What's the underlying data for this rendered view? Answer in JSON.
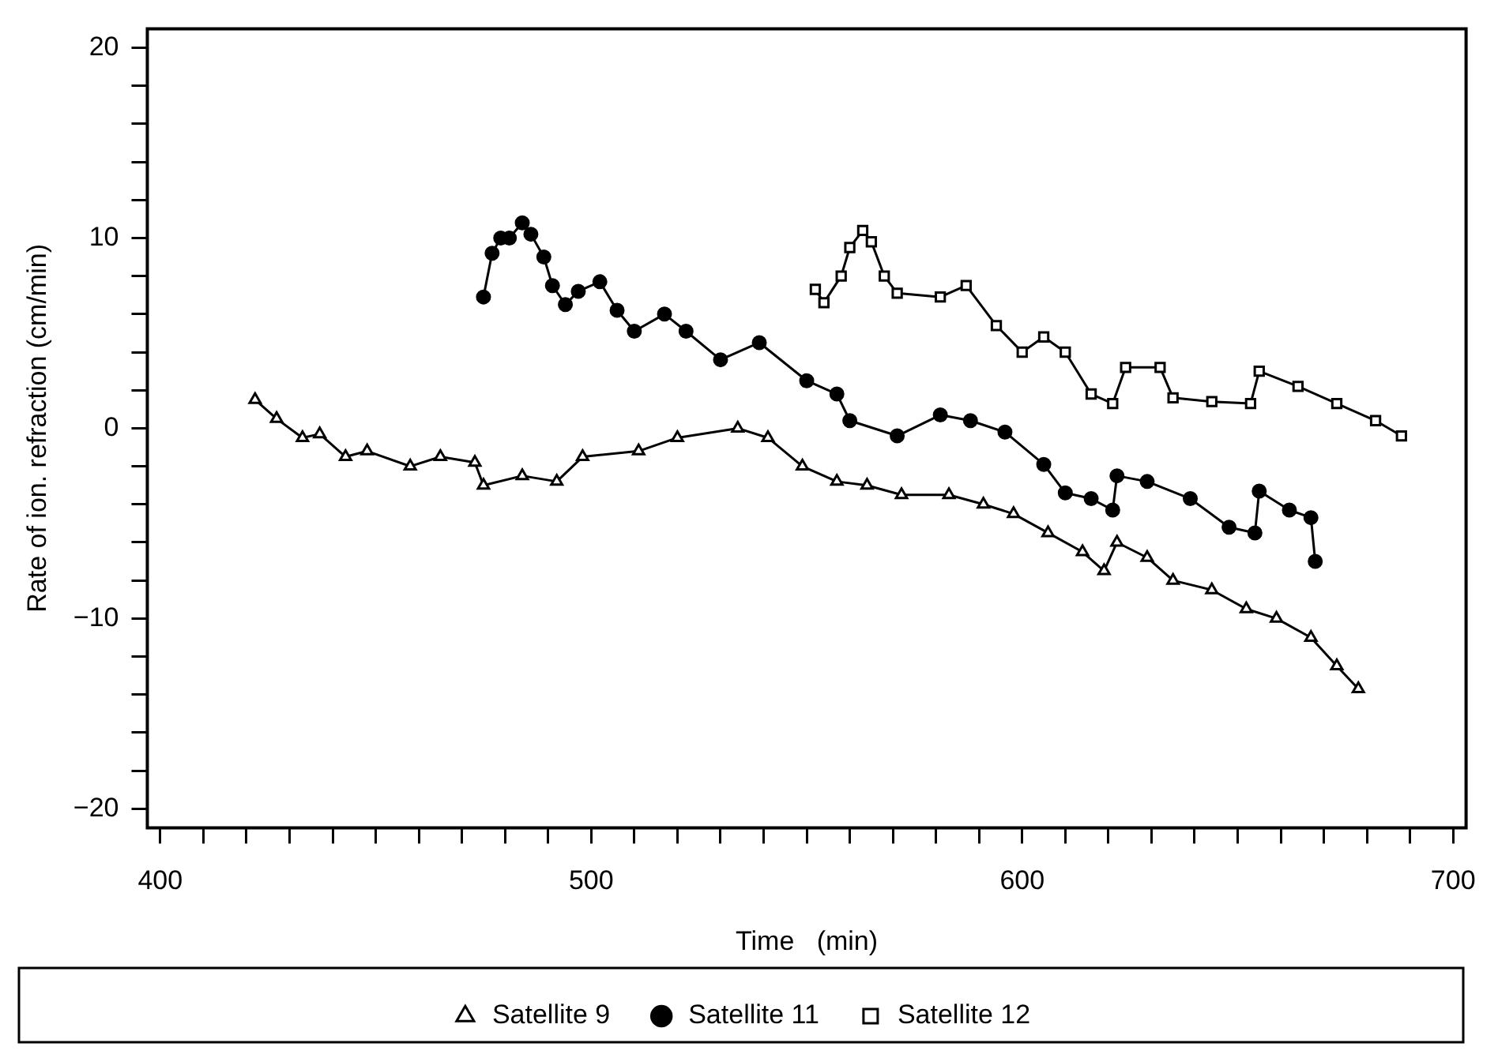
{
  "chart_data": {
    "type": "line",
    "xlabel": "Time   (min)",
    "ylabel": "Rate of ion. refraction (cm/min)",
    "xlim": [
      397,
      703
    ],
    "ylim": [
      -21,
      21
    ],
    "xticks": [
      400,
      {
        "value": 410,
        "label": null
      },
      {
        "value": 420,
        "label": null
      },
      {
        "value": 430,
        "label": null
      },
      {
        "value": 440,
        "label": null
      },
      {
        "value": 450,
        "label": null
      },
      {
        "value": 460,
        "label": null
      },
      {
        "value": 470,
        "label": null
      },
      {
        "value": 480,
        "label": null
      },
      {
        "value": 490,
        "label": null
      },
      500,
      {
        "value": 510,
        "label": null
      },
      {
        "value": 520,
        "label": null
      },
      {
        "value": 530,
        "label": null
      },
      {
        "value": 540,
        "label": null
      },
      {
        "value": 550,
        "label": null
      },
      {
        "value": 560,
        "label": null
      },
      {
        "value": 570,
        "label": null
      },
      {
        "value": 580,
        "label": null
      },
      {
        "value": 590,
        "label": null
      },
      600,
      {
        "value": 610,
        "label": null
      },
      {
        "value": 620,
        "label": null
      },
      {
        "value": 630,
        "label": null
      },
      {
        "value": 640,
        "label": null
      },
      {
        "value": 650,
        "label": null
      },
      {
        "value": 660,
        "label": null
      },
      {
        "value": 670,
        "label": null
      },
      {
        "value": 680,
        "label": null
      },
      {
        "value": 690,
        "label": null
      },
      700
    ],
    "yticks": [
      -20,
      {
        "value": -18,
        "label": null
      },
      {
        "value": -16,
        "label": null
      },
      {
        "value": -14,
        "label": null
      },
      {
        "value": -12,
        "label": null
      },
      {
        "value": -10,
        "label": "−10"
      },
      {
        "value": -8,
        "label": null
      },
      {
        "value": -6,
        "label": null
      },
      {
        "value": -4,
        "label": null
      },
      {
        "value": -2,
        "label": null
      },
      0,
      {
        "value": 2,
        "label": null
      },
      {
        "value": 4,
        "label": null
      },
      {
        "value": 6,
        "label": null
      },
      {
        "value": 8,
        "label": null
      },
      10,
      {
        "value": 12,
        "label": null
      },
      {
        "value": 14,
        "label": null
      },
      {
        "value": 16,
        "label": null
      },
      {
        "value": 18,
        "label": null
      },
      20
    ],
    "grid": false,
    "legend": "bottom",
    "line_style": "solid",
    "series": [
      {
        "name": "Satellite 9",
        "color": "#000000",
        "marker": "triangle",
        "x": [
          422,
          427,
          433,
          437,
          443,
          448,
          458,
          465,
          473,
          475,
          484,
          492,
          498,
          511,
          520,
          534,
          541,
          549,
          557,
          564,
          572,
          583,
          591,
          598,
          606,
          614,
          619,
          622,
          629,
          635,
          644,
          652,
          659,
          667,
          673,
          678
        ],
        "values": [
          1.5,
          0.5,
          -0.5,
          -0.3,
          -1.5,
          -1.2,
          -2,
          -1.5,
          -1.8,
          -3,
          -2.5,
          -2.8,
          -1.5,
          -1.2,
          -0.5,
          0,
          -0.5,
          -2,
          -2.8,
          -3,
          -3.5,
          -3.5,
          -4,
          -4.5,
          -5.5,
          -6.5,
          -7.5,
          -6,
          -6.8,
          -8,
          -8.5,
          -9.5,
          -10,
          -11,
          -12.5,
          -13.7
        ]
      },
      {
        "name": "Satellite 11",
        "color": "#000000",
        "marker": "circle",
        "x": [
          475,
          477,
          479,
          481,
          484,
          486,
          489,
          491,
          494,
          497,
          502,
          506,
          510,
          517,
          522,
          530,
          539,
          550,
          557,
          560,
          571,
          581,
          588,
          596,
          605,
          610,
          616,
          621,
          622,
          629,
          639,
          648,
          654,
          655,
          662,
          667,
          668
        ],
        "values": [
          6.9,
          9.2,
          10,
          10,
          10.8,
          10.2,
          9,
          7.5,
          6.5,
          7.2,
          7.7,
          6.2,
          5.1,
          6,
          5.1,
          3.6,
          4.5,
          2.5,
          1.8,
          0.4,
          -0.4,
          0.7,
          0.4,
          -0.2,
          -1.9,
          -3.4,
          -3.7,
          -4.3,
          -2.5,
          -2.8,
          -3.7,
          -5.2,
          -5.5,
          -3.3,
          -4.3,
          -4.7,
          -7
        ]
      },
      {
        "name": "Satellite 12",
        "color": "#000000",
        "marker": "square",
        "x": [
          552,
          554,
          558,
          560,
          563,
          565,
          568,
          571,
          581,
          587,
          594,
          600,
          605,
          610,
          616,
          621,
          624,
          632,
          635,
          644,
          653,
          655,
          664,
          673,
          682,
          688
        ],
        "values": [
          7.3,
          6.6,
          8,
          9.5,
          10.4,
          9.8,
          8,
          7.1,
          6.9,
          7.5,
          5.4,
          4,
          4.8,
          4,
          1.8,
          1.3,
          3.2,
          3.2,
          1.6,
          1.4,
          1.3,
          3,
          2.2,
          1.3,
          0.4,
          -0.4
        ]
      }
    ]
  }
}
